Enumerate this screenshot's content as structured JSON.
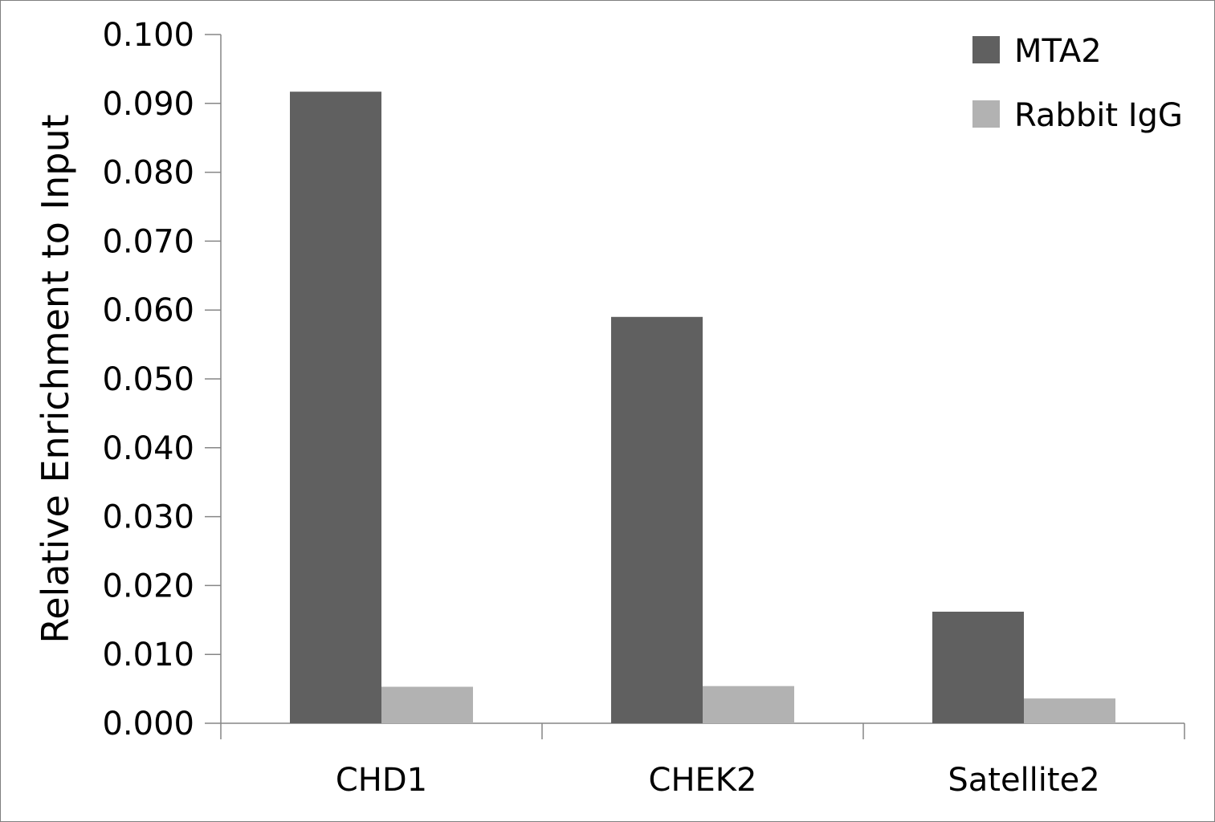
{
  "chart_data": {
    "type": "bar",
    "title": "",
    "xlabel": "",
    "ylabel": "Relative Enrichment to Input",
    "categories": [
      "CHD1",
      "CHEK2",
      "Satellite2"
    ],
    "series": [
      {
        "name": "MTA2",
        "color": "#606060",
        "values": [
          0.0917,
          0.059,
          0.0162
        ]
      },
      {
        "name": "Rabbit IgG",
        "color": "#b2b2b2",
        "values": [
          0.0053,
          0.0054,
          0.0036
        ]
      }
    ],
    "ylim": [
      0,
      0.1
    ],
    "yticks": [
      "0.000",
      "0.010",
      "0.020",
      "0.030",
      "0.040",
      "0.050",
      "0.060",
      "0.070",
      "0.080",
      "0.090",
      "0.100"
    ],
    "grid": false,
    "legend_position": "top-right"
  }
}
